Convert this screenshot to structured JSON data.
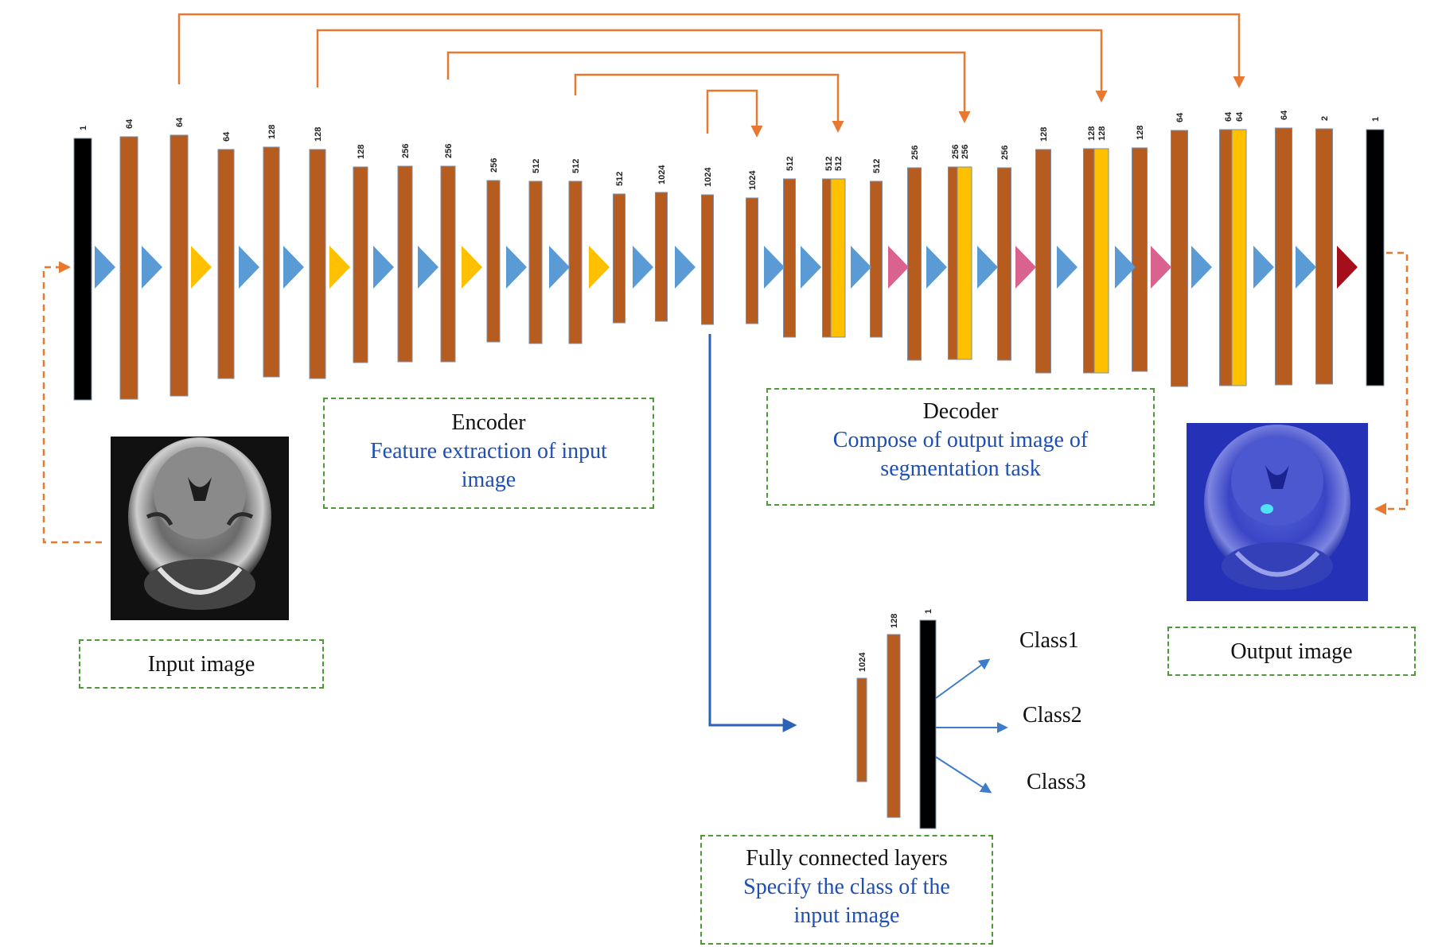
{
  "encoder": {
    "layers": [
      {
        "label": "1",
        "color": "#000000"
      },
      {
        "label": "64",
        "color": "#b65c1f"
      },
      {
        "label": "64",
        "color": "#b65c1f"
      },
      {
        "label": "64",
        "color": "#b65c1f"
      },
      {
        "label": "128",
        "color": "#b65c1f"
      },
      {
        "label": "128",
        "color": "#b65c1f"
      },
      {
        "label": "128",
        "color": "#b65c1f"
      },
      {
        "label": "256",
        "color": "#b65c1f"
      },
      {
        "label": "256",
        "color": "#b65c1f"
      },
      {
        "label": "256",
        "color": "#b65c1f"
      },
      {
        "label": "512",
        "color": "#b65c1f"
      },
      {
        "label": "512",
        "color": "#b65c1f"
      },
      {
        "label": "512",
        "color": "#b65c1f"
      },
      {
        "label": "1024",
        "color": "#b65c1f"
      },
      {
        "label": "1024",
        "color": "#b65c1f"
      }
    ]
  },
  "decoder": {
    "layers": [
      {
        "label": "1024",
        "color": "#b65c1f"
      },
      {
        "label": "512",
        "color": "#b65c1f"
      },
      {
        "label": "512",
        "color": "#b65c1f",
        "concat_label": "512"
      },
      {
        "label": "512",
        "color": "#b65c1f"
      },
      {
        "label": "256",
        "color": "#b65c1f"
      },
      {
        "label": "256",
        "color": "#b65c1f",
        "concat_label": "256"
      },
      {
        "label": "256",
        "color": "#b65c1f"
      },
      {
        "label": "128",
        "color": "#b65c1f"
      },
      {
        "label": "128",
        "color": "#b65c1f",
        "concat_label": "128"
      },
      {
        "label": "128",
        "color": "#b65c1f"
      },
      {
        "label": "64",
        "color": "#b65c1f"
      },
      {
        "label": "64",
        "color": "#b65c1f",
        "concat_label": "64"
      },
      {
        "label": "64",
        "color": "#b65c1f"
      },
      {
        "label": "2",
        "color": "#b65c1f"
      },
      {
        "label": "1",
        "color": "#000000"
      }
    ]
  },
  "fc": {
    "layers": [
      {
        "label": "1024",
        "color": "#b65c1f"
      },
      {
        "label": "128",
        "color": "#b65c1f"
      },
      {
        "label": "1",
        "color": "#000000"
      }
    ],
    "classes": [
      "Class1",
      "Class2",
      "Class3"
    ]
  },
  "boxes": {
    "encoder": {
      "title": "Encoder",
      "subtitle": "Feature extraction of input image"
    },
    "decoder": {
      "title": "Decoder",
      "subtitle": "Compose of output image of segmentation task"
    },
    "fc": {
      "title": "Fully connected layers",
      "subtitle": "Specify the class of the input image"
    },
    "input": {
      "title": "Input image"
    },
    "output": {
      "title": "Output image"
    }
  },
  "colors": {
    "layer": "#b65c1f",
    "concat": "#ffc000",
    "conv_arrow": "#5b9bd5",
    "pool_arrow": "#ffc000",
    "upconv_arrow": "#d9628f",
    "final_arrow": "#a50f1b",
    "skip_connection": "#e8782f",
    "fc_connection": "#2b62b8",
    "box_border": "#4e9a3a",
    "highlight_text": "#1d4fb4"
  },
  "images": {
    "input": "brain-mri-grayscale",
    "output": "brain-mri-segmentation-blue"
  }
}
